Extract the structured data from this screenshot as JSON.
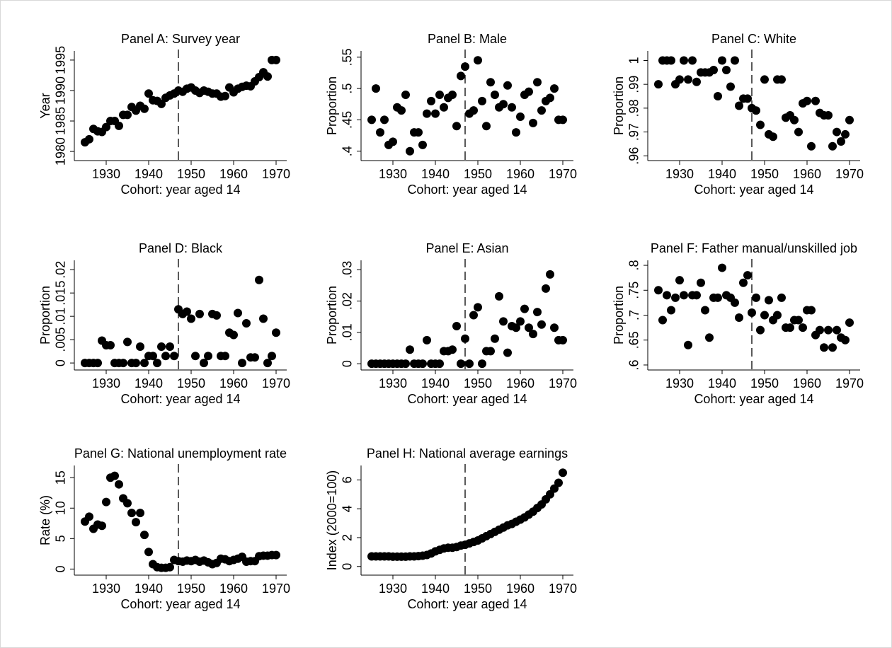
{
  "chart_data": [
    {
      "type": "scatter",
      "title": "Panel A: Survey year",
      "xlabel": "Cohort: year aged 14",
      "ylabel": "Year",
      "color": "#000000",
      "vline": 1947,
      "x": [
        1925,
        1926,
        1927,
        1928,
        1929,
        1930,
        1931,
        1932,
        1933,
        1934,
        1935,
        1936,
        1937,
        1938,
        1939,
        1940,
        1941,
        1942,
        1943,
        1944,
        1945,
        1946,
        1947,
        1948,
        1949,
        1950,
        1951,
        1952,
        1953,
        1954,
        1955,
        1956,
        1957,
        1958,
        1959,
        1960,
        1961,
        1962,
        1963,
        1964,
        1965,
        1966,
        1967,
        1968,
        1969,
        1970
      ],
      "values": [
        1981.5,
        1982,
        1983.7,
        1983.3,
        1983.2,
        1984,
        1985,
        1985,
        1984.2,
        1986,
        1986,
        1987.3,
        1986.7,
        1987.5,
        1987,
        1989.5,
        1988.4,
        1988.3,
        1987.8,
        1988.8,
        1989.2,
        1989.5,
        1990,
        1989.8,
        1990.3,
        1990.5,
        1990,
        1989.6,
        1990,
        1989.8,
        1989.5,
        1989.5,
        1989,
        1989.1,
        1990.5,
        1989.7,
        1990.3,
        1990.6,
        1990.8,
        1990.7,
        1991.5,
        1992.2,
        1993,
        1992.3,
        1995,
        1995
      ],
      "xlim": [
        1922.5,
        1972.5
      ],
      "xticks": [
        1930,
        1940,
        1950,
        1960,
        1970
      ],
      "ylim": [
        1978.5,
        1996.5
      ],
      "yticks": [
        1980,
        1985,
        1990,
        1995
      ]
    },
    {
      "type": "scatter",
      "title": "Panel B: Male",
      "xlabel": "Cohort: year aged 14",
      "ylabel": "Proportion",
      "color": "#000000",
      "vline": 1947,
      "x": [
        1925,
        1926,
        1927,
        1928,
        1929,
        1930,
        1931,
        1932,
        1933,
        1934,
        1935,
        1936,
        1937,
        1938,
        1939,
        1940,
        1941,
        1942,
        1943,
        1944,
        1945,
        1946,
        1947,
        1948,
        1949,
        1950,
        1951,
        1952,
        1953,
        1954,
        1955,
        1956,
        1957,
        1958,
        1959,
        1960,
        1961,
        1962,
        1963,
        1964,
        1965,
        1966,
        1967,
        1968,
        1969,
        1970
      ],
      "values": [
        0.45,
        0.5,
        0.43,
        0.45,
        0.41,
        0.415,
        0.47,
        0.465,
        0.49,
        0.4,
        0.43,
        0.43,
        0.41,
        0.46,
        0.48,
        0.46,
        0.49,
        0.47,
        0.485,
        0.49,
        0.44,
        0.52,
        0.535,
        0.46,
        0.465,
        0.545,
        0.48,
        0.44,
        0.51,
        0.49,
        0.47,
        0.475,
        0.505,
        0.47,
        0.43,
        0.455,
        0.49,
        0.495,
        0.445,
        0.51,
        0.465,
        0.48,
        0.485,
        0.5,
        0.45,
        0.45
      ],
      "xlim": [
        1922.5,
        1972.5
      ],
      "xticks": [
        1930,
        1940,
        1950,
        1960,
        1970
      ],
      "ylim": [
        0.385,
        0.56
      ],
      "yticks": [
        {
          "value": 0.4,
          "label": ".4"
        },
        {
          "value": 0.45,
          "label": ".45"
        },
        {
          "value": 0.5,
          "label": ".5"
        },
        {
          "value": 0.55,
          "label": ".55"
        }
      ]
    },
    {
      "type": "scatter",
      "title": "Panel C: White",
      "xlabel": "Cohort: year aged 14",
      "ylabel": "Proportion",
      "color": "#000000",
      "vline": 1947,
      "x": [
        1925,
        1926,
        1927,
        1928,
        1929,
        1930,
        1931,
        1932,
        1933,
        1934,
        1935,
        1936,
        1937,
        1938,
        1939,
        1940,
        1941,
        1942,
        1943,
        1944,
        1945,
        1946,
        1947,
        1948,
        1949,
        1950,
        1951,
        1952,
        1953,
        1954,
        1955,
        1956,
        1957,
        1958,
        1959,
        1960,
        1961,
        1962,
        1963,
        1964,
        1965,
        1966,
        1967,
        1968,
        1969,
        1970
      ],
      "values": [
        0.99,
        1,
        1,
        1,
        0.99,
        0.992,
        1,
        0.992,
        1,
        0.991,
        0.995,
        0.995,
        0.995,
        0.996,
        0.985,
        1,
        0.996,
        0.989,
        1,
        0.981,
        0.984,
        0.984,
        0.98,
        0.979,
        0.973,
        0.992,
        0.969,
        0.968,
        0.992,
        0.992,
        0.976,
        0.977,
        0.975,
        0.97,
        0.982,
        0.983,
        0.964,
        0.983,
        0.978,
        0.977,
        0.977,
        0.964,
        0.97,
        0.966,
        0.969,
        0.975
      ],
      "xlim": [
        1922.5,
        1972.5
      ],
      "xticks": [
        1930,
        1940,
        1950,
        1960,
        1970
      ],
      "ylim": [
        0.958,
        1.004
      ],
      "yticks": [
        {
          "value": 0.96,
          "label": ".96"
        },
        {
          "value": 0.97,
          "label": ".97"
        },
        {
          "value": 0.98,
          "label": ".98"
        },
        {
          "value": 0.99,
          "label": ".99"
        },
        1
      ]
    },
    {
      "type": "scatter",
      "title": "Panel D: Black",
      "xlabel": "Cohort: year aged 14",
      "ylabel": "Proportion",
      "color": "#000000",
      "vline": 1947,
      "x": [
        1925,
        1926,
        1927,
        1928,
        1929,
        1930,
        1931,
        1932,
        1933,
        1934,
        1935,
        1936,
        1937,
        1938,
        1939,
        1940,
        1941,
        1942,
        1943,
        1944,
        1945,
        1946,
        1947,
        1948,
        1949,
        1950,
        1951,
        1952,
        1953,
        1954,
        1955,
        1956,
        1957,
        1958,
        1959,
        1960,
        1961,
        1962,
        1963,
        1964,
        1965,
        1966,
        1967,
        1968,
        1969,
        1970
      ],
      "values": [
        0,
        0,
        0,
        0,
        0.0048,
        0.0038,
        0.0038,
        0,
        0,
        0,
        0.0045,
        0,
        0,
        0.0035,
        0,
        0.0015,
        0.0015,
        0,
        0.0035,
        0.0015,
        0.0035,
        0.0015,
        0.0115,
        0.0105,
        0.011,
        0.0095,
        0.0015,
        0.0105,
        0,
        0.0015,
        0.0105,
        0.0102,
        0.0015,
        0.0015,
        0.0065,
        0.006,
        0.0107,
        0,
        0.0085,
        0.0012,
        0.0012,
        0.0178,
        0.0095,
        0,
        0.0015,
        0.0065
      ],
      "xlim": [
        1922.5,
        1972.5
      ],
      "xticks": [
        1930,
        1940,
        1950,
        1960,
        1970
      ],
      "ylim": [
        -0.0015,
        0.022
      ],
      "yticks": [
        0,
        {
          "value": 0.005,
          "label": ".005"
        },
        {
          "value": 0.01,
          "label": ".01"
        },
        {
          "value": 0.015,
          "label": ".015"
        },
        {
          "value": 0.02,
          "label": ".02"
        }
      ]
    },
    {
      "type": "scatter",
      "title": "Panel E: Asian",
      "xlabel": "Cohort: year aged 14",
      "ylabel": "Proportion",
      "color": "#000000",
      "vline": 1947,
      "x": [
        1925,
        1926,
        1927,
        1928,
        1929,
        1930,
        1931,
        1932,
        1933,
        1934,
        1935,
        1936,
        1937,
        1938,
        1939,
        1940,
        1941,
        1942,
        1943,
        1944,
        1945,
        1946,
        1947,
        1948,
        1949,
        1950,
        1951,
        1952,
        1953,
        1954,
        1955,
        1956,
        1957,
        1958,
        1959,
        1960,
        1961,
        1962,
        1963,
        1964,
        1965,
        1966,
        1967,
        1968,
        1969,
        1970
      ],
      "values": [
        0,
        0,
        0,
        0,
        0,
        0,
        0,
        0,
        0,
        0.0045,
        0,
        0,
        0,
        0.0075,
        0,
        0,
        0,
        0.004,
        0.004,
        0.0045,
        0.012,
        0,
        0.008,
        0,
        0.0155,
        0.018,
        0,
        0.004,
        0.004,
        0.008,
        0.0215,
        0.0135,
        0.0035,
        0.012,
        0.0115,
        0.0135,
        0.0175,
        0.0115,
        0.0095,
        0.0165,
        0.0125,
        0.024,
        0.0285,
        0.0115,
        0.0075,
        0.0075
      ],
      "xlim": [
        1922.5,
        1972.5
      ],
      "xticks": [
        1930,
        1940,
        1950,
        1960,
        1970
      ],
      "ylim": [
        -0.002,
        0.033
      ],
      "yticks": [
        0,
        {
          "value": 0.01,
          "label": ".01"
        },
        {
          "value": 0.02,
          "label": ".02"
        },
        {
          "value": 0.03,
          "label": ".03"
        }
      ]
    },
    {
      "type": "scatter",
      "title": "Panel F: Father manual/unskilled job",
      "xlabel": "Cohort: year aged 14",
      "ylabel": "Proportion",
      "color": "#000000",
      "vline": 1947,
      "x": [
        1925,
        1926,
        1927,
        1928,
        1929,
        1930,
        1931,
        1932,
        1933,
        1934,
        1935,
        1936,
        1937,
        1938,
        1939,
        1940,
        1941,
        1942,
        1943,
        1944,
        1945,
        1946,
        1947,
        1948,
        1949,
        1950,
        1951,
        1952,
        1953,
        1954,
        1955,
        1956,
        1957,
        1958,
        1959,
        1960,
        1961,
        1962,
        1963,
        1964,
        1965,
        1966,
        1967,
        1968,
        1969,
        1970
      ],
      "values": [
        0.75,
        0.69,
        0.74,
        0.71,
        0.735,
        0.77,
        0.74,
        0.64,
        0.74,
        0.74,
        0.765,
        0.71,
        0.655,
        0.735,
        0.735,
        0.795,
        0.74,
        0.735,
        0.725,
        0.695,
        0.765,
        0.78,
        0.705,
        0.735,
        0.67,
        0.7,
        0.73,
        0.69,
        0.7,
        0.735,
        0.675,
        0.675,
        0.69,
        0.69,
        0.675,
        0.71,
        0.71,
        0.66,
        0.67,
        0.635,
        0.67,
        0.635,
        0.67,
        0.655,
        0.65,
        0.685
      ],
      "xlim": [
        1922.5,
        1972.5
      ],
      "xticks": [
        1930,
        1940,
        1950,
        1960,
        1970
      ],
      "ylim": [
        0.59,
        0.81
      ],
      "yticks": [
        {
          "value": 0.6,
          "label": ".6"
        },
        {
          "value": 0.65,
          "label": ".65"
        },
        {
          "value": 0.7,
          "label": ".7"
        },
        {
          "value": 0.75,
          "label": ".75"
        },
        {
          "value": 0.8,
          "label": ".8"
        }
      ]
    },
    {
      "type": "scatter",
      "title": "Panel G: National unemployment rate",
      "xlabel": "Cohort: year aged 14",
      "ylabel": "Rate (%)",
      "color": "#000000",
      "vline": 1947,
      "x": [
        1925,
        1926,
        1927,
        1928,
        1929,
        1930,
        1931,
        1932,
        1933,
        1934,
        1935,
        1936,
        1937,
        1938,
        1939,
        1940,
        1941,
        1942,
        1943,
        1944,
        1945,
        1946,
        1947,
        1948,
        1949,
        1950,
        1951,
        1952,
        1953,
        1954,
        1955,
        1956,
        1957,
        1958,
        1959,
        1960,
        1961,
        1962,
        1963,
        1964,
        1965,
        1966,
        1967,
        1968,
        1969,
        1970
      ],
      "values": [
        7.8,
        8.6,
        6.6,
        7.3,
        7.1,
        11,
        15,
        15.3,
        13.9,
        11.6,
        10.8,
        9.2,
        7.7,
        9.2,
        5.6,
        2.8,
        0.8,
        0.3,
        0.2,
        0.2,
        0.3,
        1.5,
        1.3,
        1.2,
        1.4,
        1.3,
        1.5,
        1.2,
        1.4,
        1.1,
        0.8,
        1,
        1.7,
        1.6,
        1.3,
        1.5,
        1.7,
        2,
        1.2,
        1.3,
        1.3,
        2.1,
        2.2,
        2.2,
        2.3,
        2.3
      ],
      "xlim": [
        1922.5,
        1972.5
      ],
      "xticks": [
        1930,
        1940,
        1950,
        1960,
        1970
      ],
      "ylim": [
        -1,
        17
      ],
      "yticks": [
        0,
        5,
        10,
        15
      ]
    },
    {
      "type": "scatter",
      "title": "Panel H: National average earnings",
      "xlabel": "Cohort: year aged 14",
      "ylabel": "Index (2000=100)",
      "color": "#000000",
      "vline": 1947,
      "x": [
        1925,
        1926,
        1927,
        1928,
        1929,
        1930,
        1931,
        1932,
        1933,
        1934,
        1935,
        1936,
        1937,
        1938,
        1939,
        1940,
        1941,
        1942,
        1943,
        1944,
        1945,
        1946,
        1947,
        1948,
        1949,
        1950,
        1951,
        1952,
        1953,
        1954,
        1955,
        1956,
        1957,
        1958,
        1959,
        1960,
        1961,
        1962,
        1963,
        1964,
        1965,
        1966,
        1967,
        1968,
        1969,
        1970
      ],
      "values": [
        0.7,
        0.7,
        0.7,
        0.7,
        0.7,
        0.68,
        0.68,
        0.68,
        0.68,
        0.7,
        0.7,
        0.72,
        0.75,
        0.8,
        0.9,
        1.05,
        1.15,
        1.25,
        1.3,
        1.3,
        1.35,
        1.45,
        1.5,
        1.6,
        1.7,
        1.8,
        1.95,
        2.1,
        2.25,
        2.4,
        2.55,
        2.7,
        2.85,
        2.95,
        3.1,
        3.25,
        3.4,
        3.6,
        3.8,
        4.05,
        4.3,
        4.65,
        5,
        5.4,
        5.8,
        6.5
      ],
      "xlim": [
        1922.5,
        1972.5
      ],
      "xticks": [
        1930,
        1940,
        1950,
        1960,
        1970
      ],
      "ylim": [
        -0.6,
        7
      ],
      "yticks": [
        0,
        2,
        4,
        6
      ]
    }
  ]
}
